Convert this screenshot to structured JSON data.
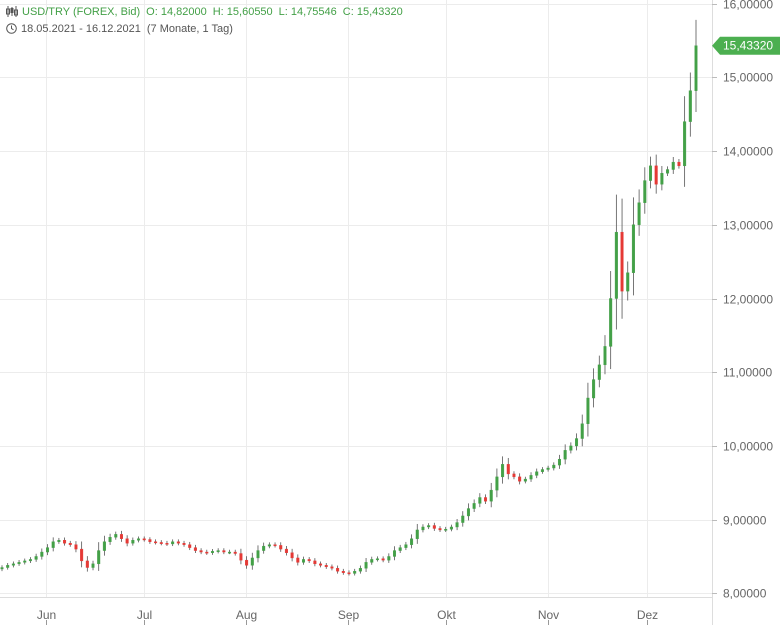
{
  "header": {
    "instrument": "USD/TRY (FOREX, Bid)",
    "open": "O: 14,82000",
    "high": "H: 15,60550",
    "low": "L: 14,75546",
    "close": "C: 15,43320",
    "date_range": "18.05.2021 - 16.12.2021",
    "span": "(7 Monate, 1 Tag)"
  },
  "colors": {
    "up": "#43a047",
    "down": "#e53935",
    "grid": "#ececec",
    "axis_text": "#666666",
    "price_tag": "#4caf50"
  },
  "chart_data": {
    "type": "candlestick",
    "last_price_label": "15,43320",
    "ylim": [
      7.95,
      16.05
    ],
    "y_ticks": [
      "8,00000",
      "9,00000",
      "10,00000",
      "11,00000",
      "12,00000",
      "13,00000",
      "14,00000",
      "15,00000",
      "16,00000"
    ],
    "y_tick_values": [
      8,
      9,
      10,
      11,
      12,
      13,
      14,
      15,
      16
    ],
    "x_labels": [
      "Jun",
      "Jul",
      "Aug",
      "Sep",
      "Okt",
      "Nov",
      "Dez"
    ],
    "x_label_dates": [
      "2021-06-01",
      "2021-07-01",
      "2021-08-01",
      "2021-09-01",
      "2021-10-01",
      "2021-11-01",
      "2021-12-01"
    ],
    "start_date": "2021-05-18",
    "end_date": "2021-12-16",
    "closes": [
      8.35,
      8.38,
      8.4,
      8.42,
      8.44,
      8.46,
      8.5,
      8.56,
      8.62,
      8.7,
      8.72,
      8.68,
      8.66,
      8.6,
      8.44,
      8.35,
      8.4,
      8.58,
      8.7,
      8.76,
      8.8,
      8.74,
      8.68,
      8.72,
      8.74,
      8.73,
      8.7,
      8.69,
      8.68,
      8.67,
      8.7,
      8.68,
      8.66,
      8.62,
      8.58,
      8.56,
      8.55,
      8.57,
      8.58,
      8.56,
      8.56,
      8.54,
      8.45,
      8.38,
      8.48,
      8.58,
      8.64,
      8.66,
      8.65,
      8.6,
      8.55,
      8.48,
      8.42,
      8.46,
      8.44,
      8.4,
      8.38,
      8.36,
      8.34,
      8.3,
      8.28,
      8.27,
      8.3,
      8.34,
      8.42,
      8.46,
      8.47,
      8.45,
      8.5,
      8.58,
      8.62,
      8.66,
      8.74,
      8.86,
      8.9,
      8.92,
      8.88,
      8.86,
      8.87,
      8.9,
      8.96,
      9.05,
      9.15,
      9.22,
      9.3,
      9.25,
      9.4,
      9.58,
      9.75,
      9.62,
      9.58,
      9.52,
      9.55,
      9.6,
      9.65,
      9.68,
      9.7,
      9.74,
      9.82,
      9.94,
      10.0,
      10.1,
      10.3,
      10.65,
      10.9,
      11.1,
      11.35,
      12.0,
      12.9,
      12.1,
      12.35,
      13.0,
      13.3,
      13.6,
      13.8,
      13.55,
      13.7,
      13.75,
      13.85,
      13.8,
      14.4,
      14.82,
      15.43
    ]
  }
}
